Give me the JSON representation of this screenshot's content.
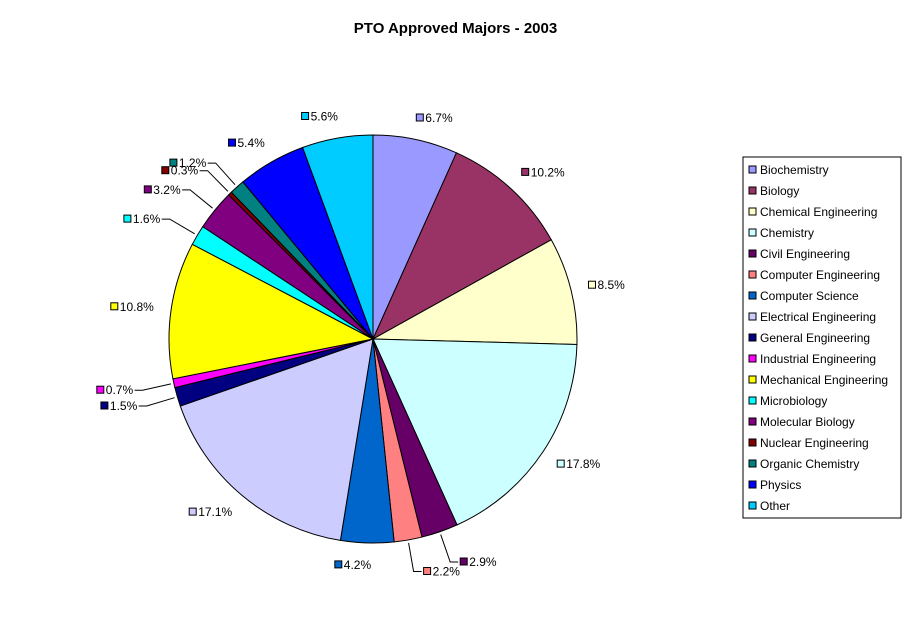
{
  "chart_data": {
    "type": "pie",
    "title": "PTO Approved Majors - 2003",
    "legend_position": "right",
    "slices": [
      {
        "name": "Biochemistry",
        "value": 6.7,
        "label": "6.7%",
        "color": "#9999FF"
      },
      {
        "name": "Biology",
        "value": 10.2,
        "label": "10.2%",
        "color": "#993366"
      },
      {
        "name": "Chemical Engineering",
        "value": 8.5,
        "label": "8.5%",
        "color": "#FFFFCC"
      },
      {
        "name": "Chemistry",
        "value": 17.8,
        "label": "17.8%",
        "color": "#CCFFFF"
      },
      {
        "name": "Civil Engineering",
        "value": 2.9,
        "label": "2.9%",
        "color": "#660066"
      },
      {
        "name": "Computer Engineering",
        "value": 2.2,
        "label": "2.2%",
        "color": "#FF8080"
      },
      {
        "name": "Computer Science",
        "value": 4.2,
        "label": "4.2%",
        "color": "#0066CC"
      },
      {
        "name": "Electrical Engineering",
        "value": 17.1,
        "label": "17.1%",
        "color": "#CCCCFF"
      },
      {
        "name": "General Engineering",
        "value": 1.5,
        "label": "1.5%",
        "color": "#000080"
      },
      {
        "name": "Industrial Engineering",
        "value": 0.7,
        "label": "0.7%",
        "color": "#FF00FF"
      },
      {
        "name": "Mechanical Engineering",
        "value": 10.8,
        "label": "10.8%",
        "color": "#FFFF00"
      },
      {
        "name": "Microbiology",
        "value": 1.6,
        "label": "1.6%",
        "color": "#00FFFF"
      },
      {
        "name": "Molecular Biology",
        "value": 3.2,
        "label": "3.2%",
        "color": "#800080"
      },
      {
        "name": "Nuclear Engineering",
        "value": 0.3,
        "label": "0.3%",
        "color": "#800000"
      },
      {
        "name": "Organic Chemistry",
        "value": 1.2,
        "label": "1.2%",
        "color": "#008080"
      },
      {
        "name": "Physics",
        "value": 5.4,
        "label": "5.4%",
        "color": "#0000FF"
      },
      {
        "name": "Other",
        "value": 5.6,
        "label": "5.6%",
        "color": "#00CCFF"
      }
    ]
  }
}
